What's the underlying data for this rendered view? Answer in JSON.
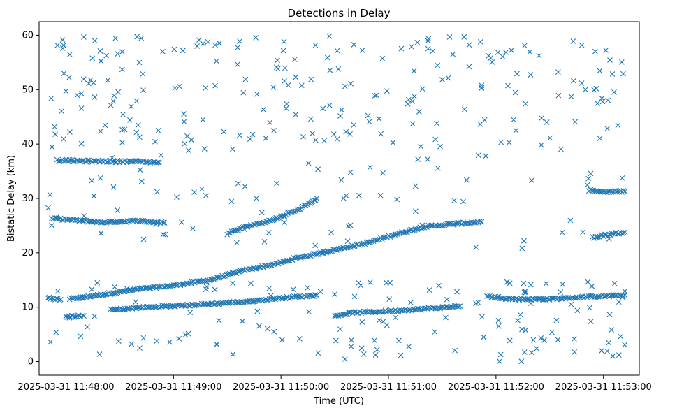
{
  "chart_data": {
    "type": "scatter",
    "title": "Detections in Delay",
    "xlabel": "Time (UTC)",
    "ylabel": "Bistatic Delay (km)",
    "marker": "x",
    "color": "#1f77b4",
    "xlim_seconds": [
      -15,
      320
    ],
    "ylim": [
      -2.5,
      62.5
    ],
    "x_ticks": [
      {
        "seconds": 0,
        "label": "2025-03-31 11:48:00"
      },
      {
        "seconds": 60,
        "label": "2025-03-31 11:49:00"
      },
      {
        "seconds": 120,
        "label": "2025-03-31 11:50:00"
      },
      {
        "seconds": 180,
        "label": "2025-03-31 11:51:00"
      },
      {
        "seconds": 240,
        "label": "2025-03-31 11:52:00"
      },
      {
        "seconds": 300,
        "label": "2025-03-31 11:53:00"
      }
    ],
    "y_ticks": [
      0,
      10,
      20,
      30,
      40,
      50,
      60
    ],
    "x_data_range_seconds": [
      -10,
      312
    ],
    "tracks": [
      {
        "name": "rising-track",
        "points": [
          [
            2,
            11.5
          ],
          [
            20,
            12.3
          ],
          [
            40,
            13.3
          ],
          [
            60,
            14.0
          ],
          [
            80,
            15.0
          ],
          [
            100,
            16.8
          ],
          [
            118,
            18.0
          ],
          [
            128,
            19.0
          ],
          [
            150,
            20.5
          ],
          [
            170,
            22.0
          ],
          [
            185,
            23.5
          ],
          [
            200,
            24.8
          ],
          [
            220,
            25.4
          ],
          [
            232,
            25.7
          ]
        ]
      },
      {
        "name": "plateau-26",
        "points": [
          [
            -8,
            26.3
          ],
          [
            5,
            26.0
          ],
          [
            20,
            25.6
          ],
          [
            40,
            25.9
          ],
          [
            55,
            25.5
          ]
        ]
      },
      {
        "name": "plateau-11-left",
        "points": [
          [
            -10,
            11.7
          ],
          [
            -3,
            11.4
          ]
        ]
      },
      {
        "name": "plateau-12-right",
        "points": [
          [
            235,
            12.0
          ],
          [
            250,
            11.5
          ],
          [
            270,
            11.5
          ],
          [
            290,
            11.9
          ],
          [
            312,
            12.2
          ]
        ]
      },
      {
        "name": "mid-track-10",
        "points": [
          [
            25,
            9.5
          ],
          [
            45,
            10.0
          ],
          [
            70,
            10.4
          ],
          [
            100,
            11.0
          ],
          [
            120,
            11.7
          ],
          [
            140,
            12.2
          ]
        ]
      },
      {
        "name": "low-track-8",
        "points": [
          [
            0,
            8.3
          ],
          [
            10,
            8.4
          ]
        ]
      },
      {
        "name": "low-track-9",
        "points": [
          [
            150,
            8.4
          ],
          [
            160,
            9.0
          ],
          [
            175,
            9.2
          ],
          [
            200,
            9.7
          ],
          [
            220,
            10.2
          ]
        ]
      },
      {
        "name": "track-25-mid",
        "points": [
          [
            90,
            23.5
          ],
          [
            100,
            24.8
          ],
          [
            115,
            26.0
          ],
          [
            130,
            28.0
          ],
          [
            140,
            30.0
          ]
        ]
      },
      {
        "name": "plateau-37",
        "points": [
          [
            -5,
            37.0
          ],
          [
            5,
            36.9
          ],
          [
            25,
            36.8
          ],
          [
            40,
            36.8
          ],
          [
            52,
            36.6
          ]
        ]
      },
      {
        "name": "right-track-23",
        "points": [
          [
            294,
            22.8
          ],
          [
            300,
            23.2
          ],
          [
            312,
            23.8
          ]
        ]
      },
      {
        "name": "right-track-31",
        "points": [
          [
            292,
            31.5
          ],
          [
            300,
            31.2
          ],
          [
            312,
            31.3
          ]
        ]
      }
    ],
    "noise_points_count": 450,
    "noise_delay_range": [
      0,
      60
    ],
    "noise_time_range_seconds": [
      -10,
      312
    ]
  }
}
